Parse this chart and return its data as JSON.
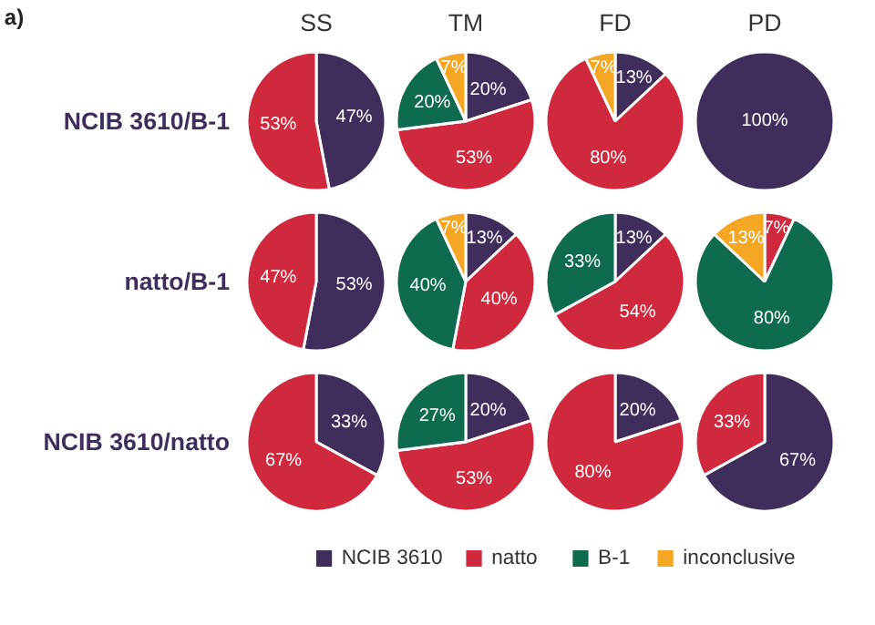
{
  "chart_data": [
    {
      "type": "pie",
      "title": "SS",
      "ylabel": "NCIB 3610/B-1",
      "annotations": [
        "a)"
      ],
      "categories": [
        null,
        null
      ],
      "values": [
        47,
        53
      ],
      "colors": [
        "#3f2d5c",
        "#d0283c"
      ],
      "value_labels": [
        "47%",
        "53%"
      ]
    },
    {
      "type": "pie",
      "title": "TM",
      "legend": "bottom",
      "categories": [
        "NCIB 3610",
        "natto",
        "B-1",
        "inconclusive"
      ],
      "values": [
        20,
        53,
        20,
        7
      ],
      "colors": [
        "#3f2d5c",
        "#d0283c",
        "#0f6b50",
        "#f5a623"
      ],
      "value_labels": [
        "20%",
        "53%",
        "20%",
        "7%"
      ]
    },
    {
      "type": "pie",
      "title": "FD",
      "categories": [
        null,
        null,
        null
      ],
      "values": [
        13,
        80,
        7
      ],
      "colors": [
        "#3f2d5c",
        "#d0283c",
        "#f5a623"
      ],
      "value_labels": [
        "13%",
        "80%",
        "7%"
      ]
    },
    {
      "type": "pie",
      "title": "PD",
      "categories": [
        null
      ],
      "values": [
        100
      ],
      "colors": [
        "#3f2d5c"
      ],
      "value_labels": [
        "100%"
      ]
    },
    {
      "type": "pie",
      "ylabel": "natto/B-1",
      "categories": [
        null,
        null
      ],
      "values": [
        53,
        47
      ],
      "colors": [
        "#3f2d5c",
        "#d0283c"
      ],
      "value_labels": [
        "53%",
        "47%"
      ]
    },
    {
      "type": "pie",
      "categories": [
        null,
        null,
        null,
        null
      ],
      "values": [
        13,
        40,
        40,
        7
      ],
      "colors": [
        "#3f2d5c",
        "#d0283c",
        "#0f6b50",
        "#f5a623"
      ],
      "value_labels": [
        "13%",
        "40%",
        "40%",
        "7%"
      ]
    },
    {
      "type": "pie",
      "categories": [
        null,
        null,
        null
      ],
      "values": [
        13,
        54,
        33
      ],
      "colors": [
        "#3f2d5c",
        "#d0283c",
        "#0f6b50"
      ],
      "value_labels": [
        "13%",
        "54%",
        "33%"
      ]
    },
    {
      "type": "pie",
      "categories": [
        null,
        null,
        null
      ],
      "values": [
        7,
        80,
        13
      ],
      "colors": [
        "#d0283c",
        "#0f6b50",
        "#f5a623"
      ],
      "value_labels": [
        "7%",
        "80%",
        "13%"
      ]
    },
    {
      "type": "pie",
      "ylabel": "NCIB 3610/natto",
      "categories": [
        null,
        null
      ],
      "values": [
        33,
        67
      ],
      "colors": [
        "#3f2d5c",
        "#d0283c"
      ],
      "value_labels": [
        "33%",
        "67%"
      ]
    },
    {
      "type": "pie",
      "categories": [
        null,
        null,
        null
      ],
      "values": [
        20,
        53,
        27
      ],
      "colors": [
        "#3f2d5c",
        "#d0283c",
        "#0f6b50"
      ],
      "value_labels": [
        "20%",
        "53%",
        "27%"
      ]
    },
    {
      "type": "pie",
      "categories": [
        null,
        null
      ],
      "values": [
        20,
        80
      ],
      "colors": [
        "#3f2d5c",
        "#d0283c"
      ],
      "value_labels": [
        "20%",
        "80%"
      ]
    },
    {
      "type": "pie",
      "categories": [
        null,
        null
      ],
      "values": [
        67,
        33
      ],
      "colors": [
        "#3f2d5c",
        "#d0283c"
      ],
      "value_labels": [
        "67%",
        "33%"
      ]
    }
  ]
}
